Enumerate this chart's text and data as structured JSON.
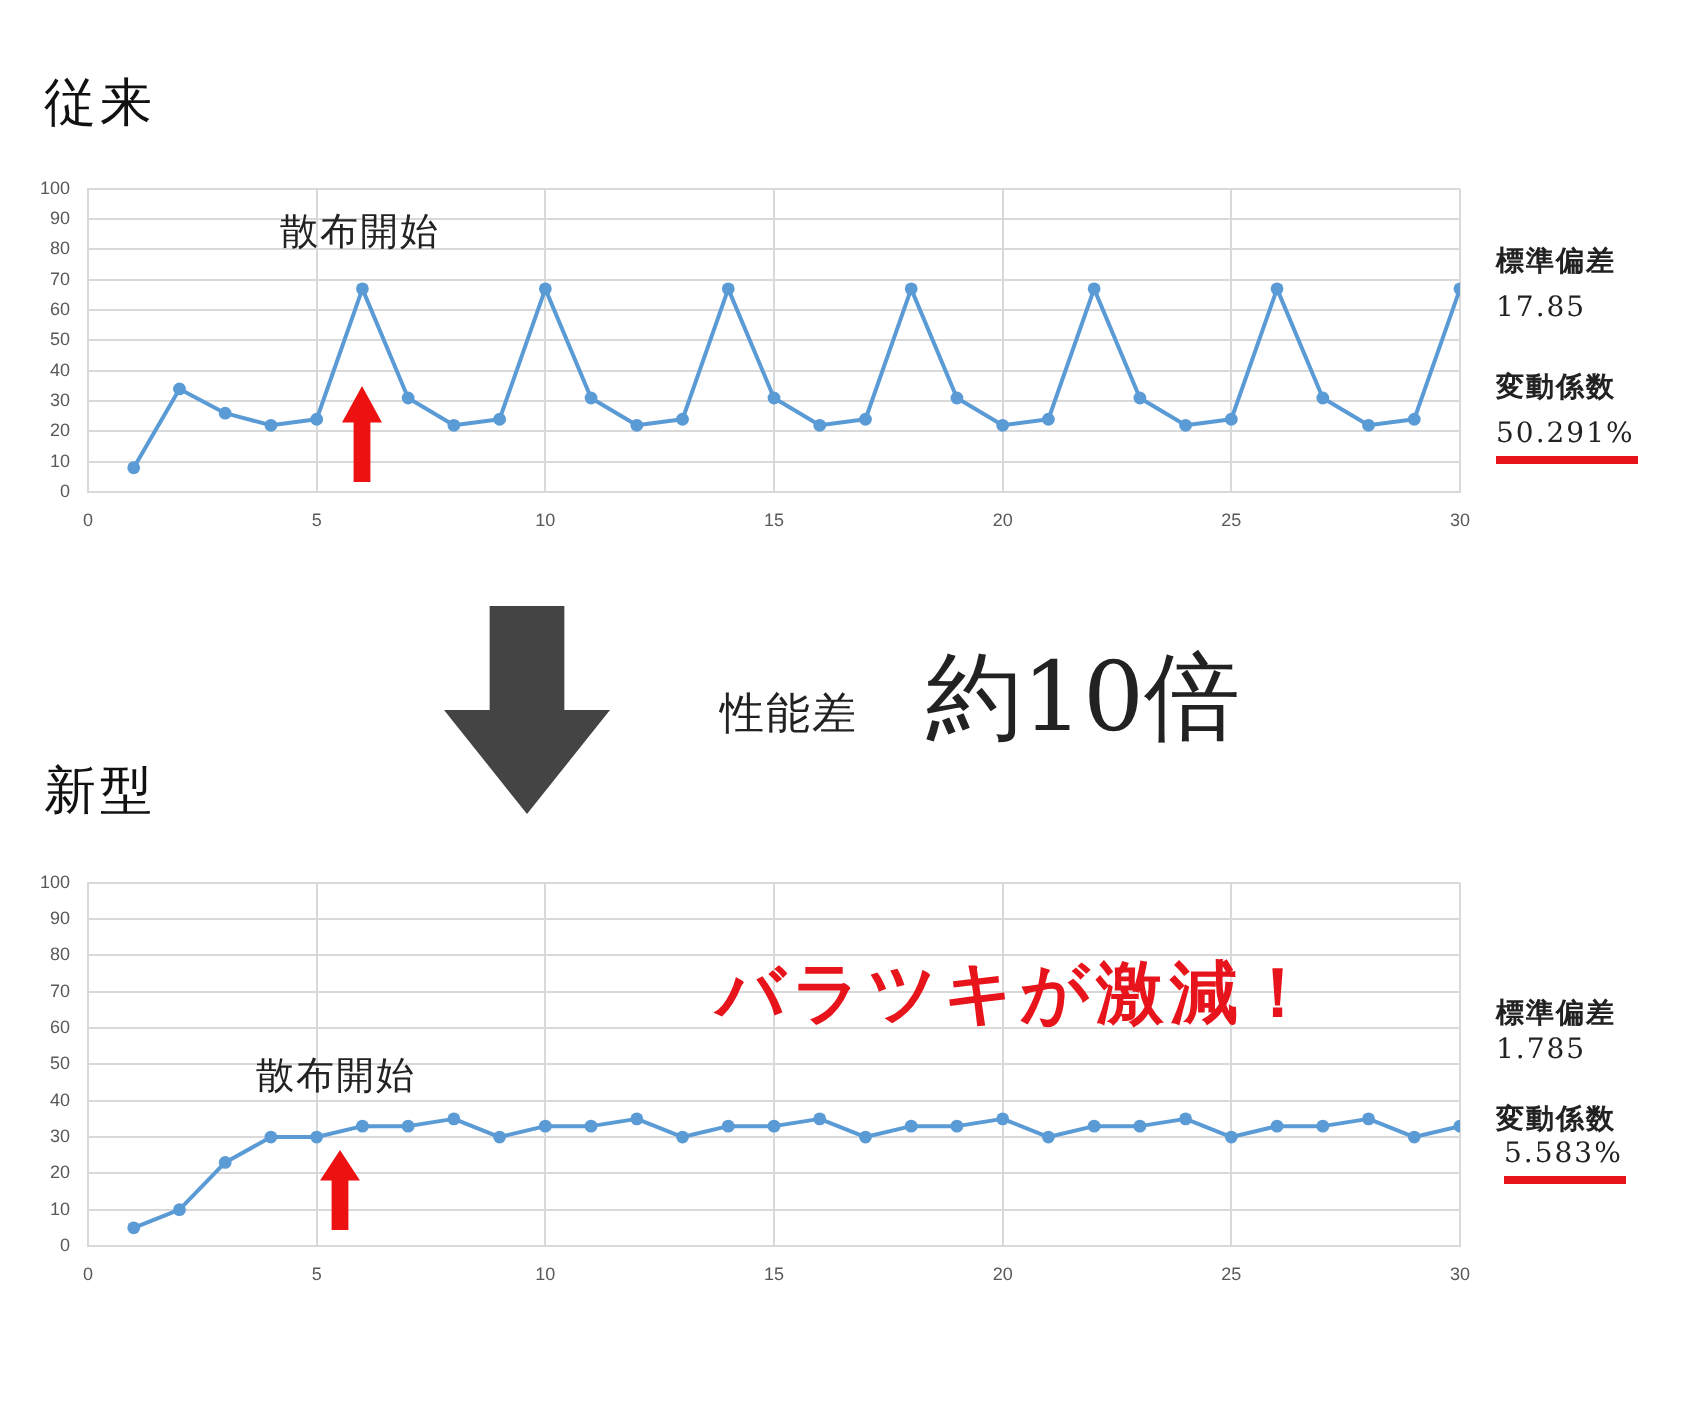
{
  "chart_data": [
    {
      "type": "line",
      "title": "従来",
      "x": [
        1,
        2,
        3,
        4,
        5,
        6,
        7,
        8,
        9,
        10,
        11,
        12,
        13,
        14,
        15,
        16,
        17,
        18,
        19,
        20,
        21,
        22,
        23,
        24,
        25,
        26,
        27,
        28,
        29,
        30
      ],
      "values": [
        8,
        34,
        26,
        22,
        24,
        67,
        31,
        22,
        24,
        67,
        31,
        22,
        24,
        67,
        31,
        22,
        24,
        67,
        31,
        22,
        24,
        67,
        31,
        22,
        24,
        67,
        31,
        22,
        24,
        67
      ],
      "color": "#5b9bd5",
      "xlim": [
        0,
        30
      ],
      "xticks": [
        0,
        5,
        10,
        15,
        20,
        25,
        30
      ],
      "ylim": [
        0,
        100
      ],
      "yticks": [
        0,
        10,
        20,
        30,
        40,
        50,
        60,
        70,
        80,
        90,
        100
      ],
      "grid": true,
      "marker": "circle",
      "annotations": [
        "散布開始",
        "標準偏差",
        "17.85",
        "変動係数",
        "50.291%"
      ]
    },
    {
      "type": "line",
      "title": "新型",
      "x": [
        1,
        2,
        3,
        4,
        5,
        6,
        7,
        8,
        9,
        10,
        11,
        12,
        13,
        14,
        15,
        16,
        17,
        18,
        19,
        20,
        21,
        22,
        23,
        24,
        25,
        26,
        27,
        28,
        29,
        30
      ],
      "values": [
        5,
        10,
        23,
        30,
        30,
        33,
        33,
        35,
        30,
        33,
        33,
        35,
        30,
        33,
        33,
        35,
        30,
        33,
        33,
        35,
        30,
        33,
        33,
        35,
        30,
        33,
        33,
        35,
        30,
        33
      ],
      "color": "#5b9bd5",
      "xlim": [
        0,
        30
      ],
      "xticks": [
        0,
        5,
        10,
        15,
        20,
        25,
        30
      ],
      "ylim": [
        0,
        100
      ],
      "yticks": [
        0,
        10,
        20,
        30,
        40,
        50,
        60,
        70,
        80,
        90,
        100
      ],
      "grid": true,
      "marker": "circle",
      "annotations": [
        "散布開始",
        "標準偏差",
        "1.785",
        "変動係数",
        "5.583%",
        "バラツキが激減！",
        "性能差",
        "約10倍"
      ]
    }
  ]
}
